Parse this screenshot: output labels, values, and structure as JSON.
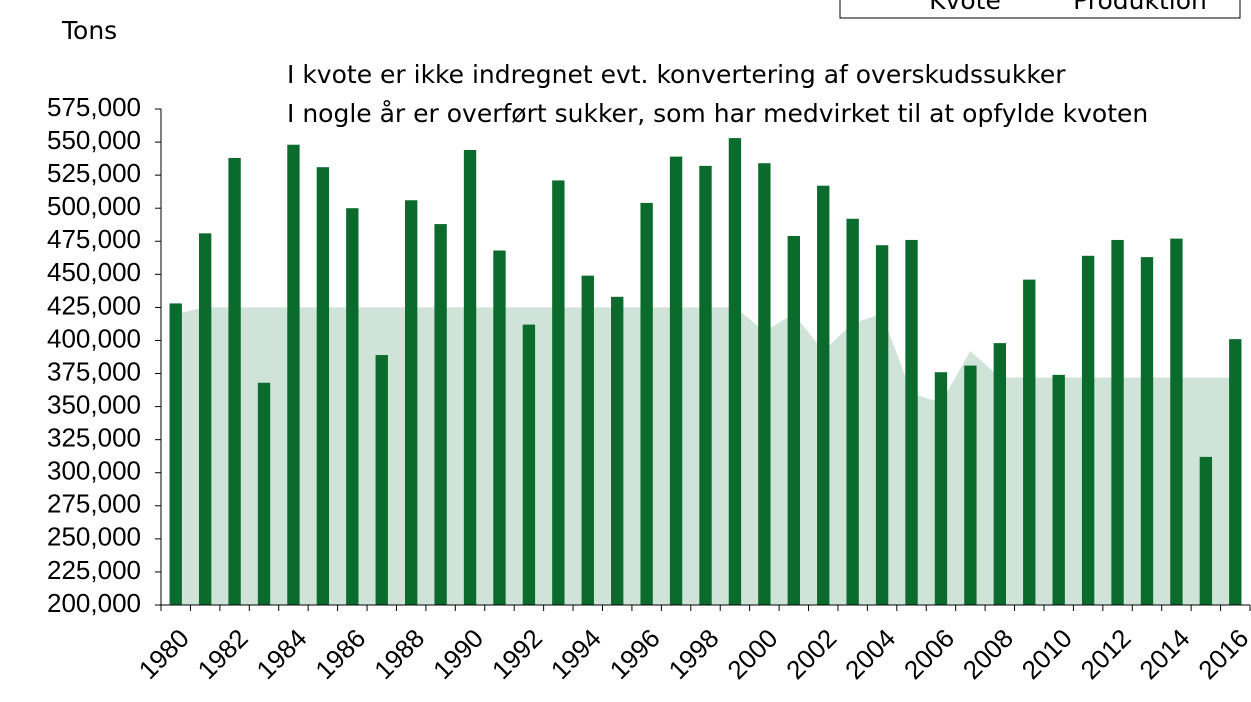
{
  "chart_data": {
    "type": "bar",
    "y_label": "Tons",
    "annotations": [
      "I kvote er ikke indregnet evt. konvertering af overskudssukker",
      "I nogle år er overført sukker, som har medvirket til at opfylde kvoten"
    ],
    "categories": [
      "1980",
      null,
      "1982",
      null,
      "1984",
      null,
      "1986",
      null,
      "1988",
      null,
      "1990",
      null,
      "1992",
      null,
      "1994",
      null,
      "1996",
      null,
      "1998",
      null,
      "2000",
      null,
      "2002",
      null,
      "2004",
      null,
      "2006",
      null,
      "2008",
      null,
      "2010",
      null,
      "2012",
      null,
      "2014",
      null,
      "2016"
    ],
    "series": [
      {
        "name": "Kvote",
        "type": "area",
        "color": "#cfe3d8",
        "values": [
          420000,
          425000,
          425000,
          425000,
          425000,
          425000,
          425000,
          425000,
          425000,
          425000,
          425000,
          425000,
          425000,
          425000,
          425000,
          425000,
          425000,
          425000,
          425000,
          425000,
          407000,
          420000,
          392000,
          413000,
          420000,
          360000,
          353000,
          392000,
          372000,
          372000,
          372000,
          372000,
          372000,
          372000,
          372000,
          372000,
          372000
        ]
      },
      {
        "name": "Produktion",
        "type": "bar",
        "color": "#0b6b2c",
        "values": [
          428000,
          481000,
          538000,
          368000,
          548000,
          531000,
          500000,
          389000,
          506000,
          488000,
          544000,
          468000,
          412000,
          521000,
          449000,
          433000,
          504000,
          539000,
          532000,
          553000,
          534000,
          479000,
          517000,
          492000,
          472000,
          476000,
          376000,
          381000,
          398000,
          446000,
          374000,
          464000,
          476000,
          463000,
          477000,
          312000,
          401000
        ]
      }
    ],
    "ylim": [
      200000,
      575000
    ],
    "yticks": [
      {
        "value": 200000,
        "label": "200,000"
      },
      {
        "value": 225000,
        "label": "225,000"
      },
      {
        "value": 250000,
        "label": "250,000"
      },
      {
        "value": 275000,
        "label": "275,000"
      },
      {
        "value": 300000,
        "label": "300,000"
      },
      {
        "value": 325000,
        "label": "325,000"
      },
      {
        "value": 350000,
        "label": "350,000"
      },
      {
        "value": 375000,
        "label": "375,000"
      },
      {
        "value": 400000,
        "label": "400,000"
      },
      {
        "value": 425000,
        "label": "425,000"
      },
      {
        "value": 450000,
        "label": "450,000"
      },
      {
        "value": 475000,
        "label": "475,000"
      },
      {
        "value": 500000,
        "label": "500,000"
      },
      {
        "value": 525000,
        "label": "525,000"
      },
      {
        "value": 550000,
        "label": "550,000"
      },
      {
        "value": 575000,
        "label": "575,000"
      }
    ],
    "grid": false
  }
}
